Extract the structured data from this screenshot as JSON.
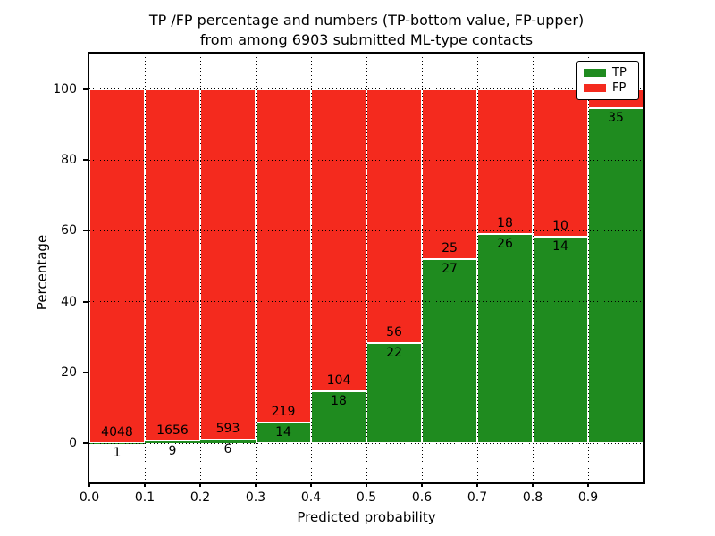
{
  "figure": {
    "title_line1": "TP /FP percentage and numbers (TP-bottom value, FP-upper)",
    "title_line2": "from among 6903 submitted ML-type contacts"
  },
  "axes": {
    "ylabel": "Percentage",
    "xlabel": "Predicted probability",
    "ytick_labels": [
      "0",
      "20",
      "40",
      "60",
      "80",
      "100"
    ],
    "ytick_values": [
      0,
      20,
      40,
      60,
      80,
      100
    ],
    "xtick_labels": [
      "0.0",
      "0.1",
      "0.2",
      "0.3",
      "0.4",
      "0.5",
      "0.6",
      "0.7",
      "0.8",
      "0.9"
    ],
    "xtick_values": [
      0.0,
      0.1,
      0.2,
      0.3,
      0.4,
      0.5,
      0.6,
      0.7,
      0.8,
      0.9
    ]
  },
  "legend": {
    "items": [
      {
        "label": "TP",
        "color": "#1f8b1f"
      },
      {
        "label": "FP",
        "color": "#f42a1e"
      }
    ]
  },
  "colors": {
    "tp_green": "#1f8b1f",
    "fp_red": "#f42a1e",
    "background": "#ffffff",
    "text": "#000000"
  },
  "chart_data": {
    "type": "bar",
    "stacked": true,
    "normalized_to_percent": true,
    "title": "TP /FP percentage and numbers (TP-bottom value, FP-upper) from among 6903 submitted ML-type contacts",
    "xlabel": "Predicted probability",
    "ylabel": "Percentage",
    "total_contacts": 6903,
    "bin_edges": [
      0.0,
      0.1,
      0.2,
      0.3,
      0.4,
      0.5,
      0.6,
      0.7,
      0.8,
      0.9,
      1.0
    ],
    "categories": [
      "0.0-0.1",
      "0.1-0.2",
      "0.2-0.3",
      "0.3-0.4",
      "0.4-0.5",
      "0.5-0.6",
      "0.6-0.7",
      "0.7-0.8",
      "0.8-0.9",
      "0.9-1.0"
    ],
    "series": [
      {
        "name": "TP",
        "color": "#1f8b1f",
        "counts": [
          1,
          9,
          6,
          14,
          18,
          22,
          27,
          26,
          14,
          35
        ],
        "percent": [
          0.02,
          0.54,
          1.0,
          6.01,
          14.75,
          28.21,
          51.92,
          59.09,
          58.33,
          94.6
        ],
        "count_labels_visible": [
          "1",
          "9",
          "6",
          "14",
          "18",
          "22",
          "27",
          "26",
          "14",
          "35"
        ]
      },
      {
        "name": "FP",
        "color": "#f42a1e",
        "counts": [
          4048,
          1656,
          593,
          219,
          104,
          56,
          25,
          18,
          10,
          null
        ],
        "percent": [
          99.98,
          99.46,
          99.0,
          93.99,
          85.25,
          71.79,
          48.08,
          40.91,
          41.67,
          5.4
        ],
        "count_labels_visible": [
          "4048",
          "1656",
          "593",
          "219",
          "104",
          "56",
          "25",
          "18",
          "10",
          ""
        ]
      }
    ],
    "ylim": [
      -11,
      110
    ],
    "xlim": [
      0.0,
      1.0
    ],
    "grid": "dotted",
    "legend_position": "upper right"
  }
}
